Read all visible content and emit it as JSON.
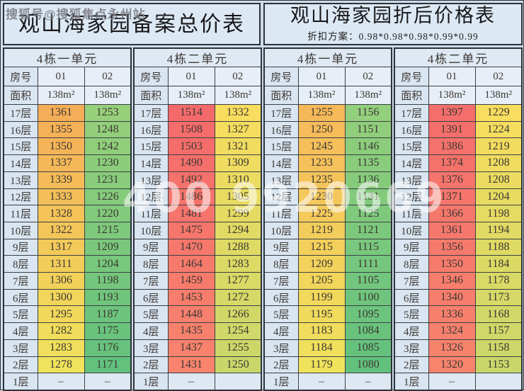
{
  "watermarks": {
    "top_left": "搜狐号@搜狐焦点永州站",
    "center": "400 9920669"
  },
  "sheets": [
    {
      "title": "观山海家园备案总价表",
      "subtitle": "",
      "tables": [
        {
          "unit": "4栋一单元",
          "room_label": "房号",
          "area_label": "面积",
          "col_headers": [
            "01",
            "02"
          ],
          "areas": [
            "138m²",
            "138m²"
          ],
          "floors": [
            "17层",
            "16层",
            "15层",
            "14层",
            "13层",
            "12层",
            "11层",
            "10层",
            "9层",
            "8层",
            "7层",
            "6层",
            "5层",
            "4层",
            "3层",
            "2层",
            "1层"
          ],
          "col1": [
            "1361",
            "1355",
            "1350",
            "1337",
            "1339",
            "1333",
            "1328",
            "1322",
            "1317",
            "1311",
            "1306",
            "1300",
            "1295",
            "1282",
            "1283",
            "1278",
            "–"
          ],
          "col2": [
            "1253",
            "1248",
            "1242",
            "1230",
            "1231",
            "1226",
            "1220",
            "1215",
            "1209",
            "1204",
            "1198",
            "1193",
            "1187",
            "1175",
            "1176",
            "1171",
            "–"
          ],
          "colors": {
            "col1_top": "#f6ad57",
            "col1_bottom": "#f0e35c",
            "col2_top": "#97d07b",
            "col2_bottom": "#62c17d"
          }
        },
        {
          "unit": "4栋二单元",
          "room_label": "房号",
          "area_label": "面积",
          "col_headers": [
            "01",
            "02"
          ],
          "areas": [
            "138m²",
            "138m²"
          ],
          "floors": [
            "17层",
            "16层",
            "15层",
            "14层",
            "13层",
            "12层",
            "11层",
            "10层",
            "9层",
            "8层",
            "7层",
            "6层",
            "5层",
            "4层",
            "3层",
            "2层",
            "1层"
          ],
          "col1": [
            "1514",
            "1508",
            "1503",
            "1490",
            "1492",
            "1486",
            "1481",
            "1475",
            "1470",
            "1464",
            "1459",
            "1453",
            "1448",
            "1435",
            "1437",
            "1431",
            "–"
          ],
          "col2": [
            "1332",
            "1327",
            "1321",
            "1309",
            "1310",
            "1305",
            "1299",
            "1294",
            "1288",
            "1283",
            "1277",
            "1272",
            "1266",
            "1254",
            "1255",
            "1250",
            ""
          ],
          "colors": {
            "col1_top": "#f46a6b",
            "col1_bottom": "#f8846d",
            "col2_top": "#f8dd5e",
            "col2_bottom": "#c9d76a"
          }
        }
      ]
    },
    {
      "title": "观山海家园折后价格表",
      "subtitle": "折扣方案：0.98*0.98*0.98*0.99*0.99",
      "tables": [
        {
          "unit": "4栋一单元",
          "room_label": "房号",
          "area_label": "面积",
          "col_headers": [
            "01",
            "02"
          ],
          "areas": [
            "138m²",
            "138m²"
          ],
          "floors": [
            "17层",
            "16层",
            "15层",
            "14层",
            "13层",
            "12层",
            "11层",
            "10层",
            "9层",
            "8层",
            "7层",
            "6层",
            "5层",
            "4层",
            "3层",
            "2层",
            "1层"
          ],
          "col1": [
            "1255",
            "1250",
            "1245",
            "1233",
            "1235",
            "1230",
            "1225",
            "1219",
            "1215",
            "1209",
            "1205",
            "1199",
            "1195",
            "1183",
            "1184",
            "1179",
            "–"
          ],
          "col2": [
            "1156",
            "1151",
            "1146",
            "1135",
            "1136",
            "1131",
            "1125",
            "1121",
            "1115",
            "1111",
            "1105",
            "1100",
            "1095",
            "1084",
            "1085",
            "1080",
            "–"
          ],
          "colors": {
            "col1_top": "#f6b95a",
            "col1_bottom": "#f0e35c",
            "col2_top": "#93cf7c",
            "col2_bottom": "#62c17d"
          }
        },
        {
          "unit": "4栋二单元",
          "room_label": "房号",
          "area_label": "面积",
          "col_headers": [
            "01",
            "02"
          ],
          "areas": [
            "138m²",
            "138m²"
          ],
          "floors": [
            "17层",
            "16层",
            "15层",
            "14层",
            "13层",
            "12层",
            "11层",
            "10层",
            "9层",
            "8层",
            "7层",
            "6层",
            "5层",
            "4层",
            "3层",
            "2层",
            "1层"
          ],
          "col1": [
            "1397",
            "1391",
            "1386",
            "1374",
            "1376",
            "1371",
            "1366",
            "1361",
            "1356",
            "1350",
            "1346",
            "1340",
            "1336",
            "1324",
            "1326",
            "1320",
            "–"
          ],
          "col2": [
            "1229",
            "1224",
            "1219",
            "1208",
            "1208",
            "1204",
            "1198",
            "1194",
            "1188",
            "1184",
            "1178",
            "1173",
            "1168",
            "1157",
            "1158",
            "1153",
            ""
          ],
          "colors": {
            "col1_top": "#f46e6b",
            "col1_bottom": "#f8846d",
            "col2_top": "#f8dd5e",
            "col2_bottom": "#c9d76a"
          }
        }
      ]
    }
  ]
}
